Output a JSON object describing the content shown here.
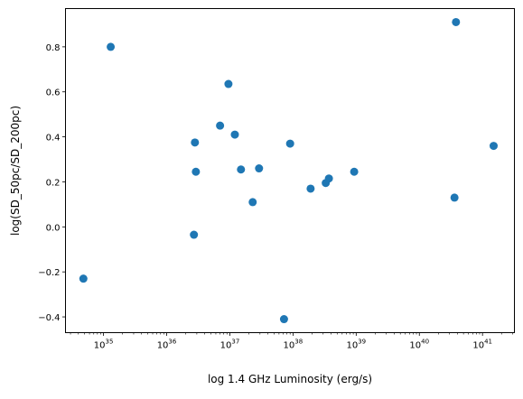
{
  "chart_data": {
    "type": "scatter",
    "xlabel": "log 1.4 GHz Luminosity (erg/s)",
    "ylabel": "log(SD_50pc/SD_200pc)",
    "x_scale": "log",
    "xlim": [
      2.5e+34,
      3.2e+41
    ],
    "ylim": [
      -0.47,
      0.97
    ],
    "x_ticks": [
      {
        "value": 1e+35,
        "base": "10",
        "exp": "35"
      },
      {
        "value": 1e+36,
        "base": "10",
        "exp": "36"
      },
      {
        "value": 1e+37,
        "base": "10",
        "exp": "37"
      },
      {
        "value": 1e+38,
        "base": "10",
        "exp": "38"
      },
      {
        "value": 1e+39,
        "base": "10",
        "exp": "39"
      },
      {
        "value": 1e+40,
        "base": "10",
        "exp": "40"
      },
      {
        "value": 1e+41,
        "base": "10",
        "exp": "41"
      }
    ],
    "y_ticks": [
      {
        "value": -0.4,
        "label": "−0.4"
      },
      {
        "value": -0.2,
        "label": "−0.2"
      },
      {
        "value": 0.0,
        "label": "0.0"
      },
      {
        "value": 0.2,
        "label": "0.2"
      },
      {
        "value": 0.4,
        "label": "0.4"
      },
      {
        "value": 0.6,
        "label": "0.6"
      },
      {
        "value": 0.8,
        "label": "0.8"
      }
    ],
    "grid": false,
    "marker_color": "#1f77b4",
    "points": [
      {
        "x": 4.8e+34,
        "y": -0.23
      },
      {
        "x": 1.3e+35,
        "y": 0.8
      },
      {
        "x": 2.8e+36,
        "y": 0.375
      },
      {
        "x": 2.9e+36,
        "y": 0.245
      },
      {
        "x": 2.7e+36,
        "y": -0.035
      },
      {
        "x": 7e+36,
        "y": 0.45
      },
      {
        "x": 9.5e+36,
        "y": 0.635
      },
      {
        "x": 1.2e+37,
        "y": 0.41
      },
      {
        "x": 1.5e+37,
        "y": 0.255
      },
      {
        "x": 2.3e+37,
        "y": 0.11
      },
      {
        "x": 2.9e+37,
        "y": 0.26
      },
      {
        "x": 7.2e+37,
        "y": -0.41
      },
      {
        "x": 9e+37,
        "y": 0.37
      },
      {
        "x": 1.9e+38,
        "y": 0.17
      },
      {
        "x": 3.3e+38,
        "y": 0.195
      },
      {
        "x": 3.7e+38,
        "y": 0.215
      },
      {
        "x": 9.3e+38,
        "y": 0.245
      },
      {
        "x": 3.6e+40,
        "y": 0.13
      },
      {
        "x": 3.8e+40,
        "y": 0.91
      },
      {
        "x": 1.5e+41,
        "y": 0.36
      }
    ]
  }
}
